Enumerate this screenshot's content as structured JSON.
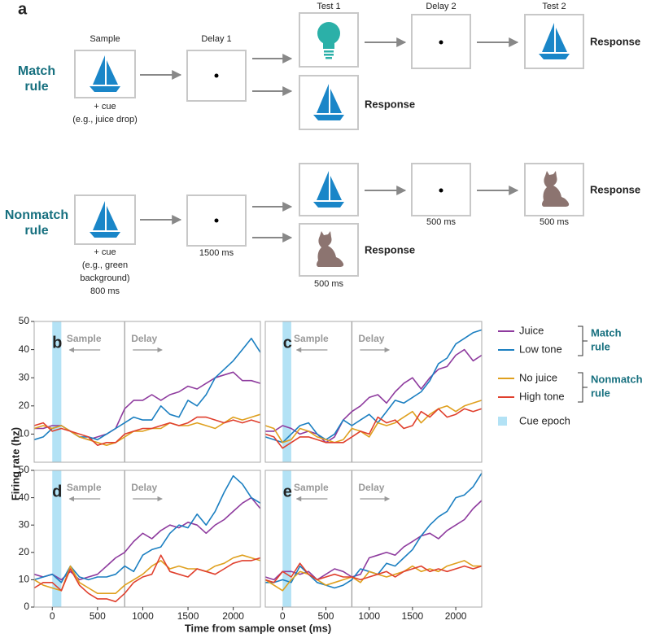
{
  "panel_a": {
    "label": "a",
    "headers": [
      "Sample",
      "Delay 1",
      "Test 1",
      "Delay 2",
      "Test 2"
    ],
    "match": {
      "rule": [
        "Match",
        "rule"
      ],
      "cue": [
        "+ cue",
        "(e.g., juice drop)"
      ],
      "responses": [
        "Response",
        "Response"
      ]
    },
    "nonmatch": {
      "rule": [
        "Nonmatch",
        "rule"
      ],
      "cue": [
        "+ cue",
        "(e.g., green",
        "background)",
        "800 ms"
      ],
      "delay1_duration": "1500 ms",
      "test1_duration": "500 ms",
      "delay2_duration": "500 ms",
      "test2_duration": "500 ms",
      "responses": [
        "Response",
        "Response"
      ]
    }
  },
  "legend": {
    "groups": [
      [
        "Match",
        "rule"
      ],
      [
        "Nonmatch",
        "rule"
      ]
    ],
    "cue_epoch": "Cue epoch",
    "cue_color": "#b3e2f5"
  },
  "chart_data": [
    {
      "type": "line",
      "label": "b",
      "annotations": [
        "Sample",
        "Delay"
      ],
      "vline": 800,
      "shaded_span": [
        0,
        100
      ],
      "x": [
        -200,
        -100,
        0,
        100,
        200,
        300,
        400,
        500,
        600,
        700,
        800,
        900,
        1000,
        1100,
        1200,
        1300,
        1400,
        1500,
        1600,
        1700,
        1800,
        1900,
        2000,
        2100,
        2200,
        2300
      ],
      "xlim": [
        -200,
        2300
      ],
      "ylim": [
        0,
        50
      ],
      "yticks": [
        10,
        20,
        30,
        40,
        50
      ],
      "series": [
        {
          "name": "Juice",
          "color": "#8e3b9e",
          "values": [
            12,
            12,
            13,
            13,
            11,
            9,
            8,
            9,
            10,
            12,
            19,
            22,
            22,
            24,
            22,
            24,
            25,
            27,
            26,
            28,
            30,
            31,
            32,
            29,
            29,
            28
          ]
        },
        {
          "name": "Low tone",
          "color": "#1b7fc1",
          "values": [
            8,
            9,
            12,
            13,
            11,
            9,
            9,
            8,
            10,
            12,
            14,
            16,
            15,
            15,
            20,
            17,
            16,
            22,
            20,
            24,
            30,
            33,
            36,
            40,
            44,
            39
          ]
        },
        {
          "name": "No juice",
          "color": "#dfa01e",
          "values": [
            12,
            13,
            12,
            13,
            11,
            9,
            8,
            7,
            6,
            7,
            9,
            11,
            11,
            12,
            12,
            14,
            13,
            13,
            14,
            13,
            12,
            14,
            16,
            15,
            16,
            17
          ]
        },
        {
          "name": "High tone",
          "color": "#e0402e",
          "values": [
            13,
            14,
            11,
            12,
            11,
            10,
            9,
            6,
            7,
            7,
            10,
            11,
            12,
            12,
            13,
            14,
            13,
            14,
            16,
            16,
            15,
            14,
            15,
            14,
            15,
            14
          ]
        }
      ]
    },
    {
      "type": "line",
      "label": "c",
      "annotations": [
        "Sample",
        "Delay"
      ],
      "vline": 800,
      "shaded_span": [
        0,
        100
      ],
      "x": [
        -200,
        -100,
        0,
        100,
        200,
        300,
        400,
        500,
        600,
        700,
        800,
        900,
        1000,
        1100,
        1200,
        1300,
        1400,
        1500,
        1600,
        1700,
        1800,
        1900,
        2000,
        2100,
        2200,
        2300
      ],
      "xlim": [
        -200,
        2300
      ],
      "ylim": [
        0,
        50
      ],
      "series": [
        {
          "name": "Juice",
          "color": "#8e3b9e",
          "values": [
            11,
            11,
            13,
            12,
            10,
            11,
            10,
            7,
            9,
            15,
            18,
            20,
            23,
            24,
            21,
            25,
            28,
            30,
            26,
            30,
            33,
            34,
            38,
            40,
            36,
            38
          ]
        },
        {
          "name": "Low tone",
          "color": "#1b7fc1",
          "values": [
            9,
            8,
            7,
            10,
            13,
            14,
            10,
            8,
            10,
            15,
            13,
            15,
            17,
            14,
            18,
            22,
            21,
            23,
            25,
            29,
            35,
            37,
            42,
            44,
            46,
            47
          ]
        },
        {
          "name": "No juice",
          "color": "#dfa01e",
          "values": [
            13,
            12,
            7,
            8,
            12,
            11,
            9,
            8,
            7,
            8,
            12,
            11,
            9,
            14,
            13,
            14,
            16,
            18,
            14,
            17,
            19,
            20,
            18,
            20,
            21,
            22
          ]
        },
        {
          "name": "High tone",
          "color": "#e0402e",
          "values": [
            10,
            9,
            5,
            7,
            9,
            9,
            8,
            7,
            7,
            7,
            9,
            11,
            10,
            16,
            14,
            15,
            12,
            13,
            18,
            16,
            19,
            16,
            17,
            19,
            18,
            19
          ]
        }
      ]
    },
    {
      "type": "line",
      "label": "d",
      "annotations": [
        "Sample",
        "Delay"
      ],
      "vline": 800,
      "shaded_span": [
        0,
        100
      ],
      "ylabel": "Firing rate (hz)",
      "xlabel": "Time from sample onset (ms)",
      "x": [
        -200,
        -100,
        0,
        100,
        200,
        300,
        400,
        500,
        600,
        700,
        800,
        900,
        1000,
        1100,
        1200,
        1300,
        1400,
        1500,
        1600,
        1700,
        1800,
        1900,
        2000,
        2100,
        2200,
        2300
      ],
      "xlim": [
        -200,
        2300
      ],
      "ylim": [
        0,
        50
      ],
      "yticks": [
        0,
        10,
        20,
        30,
        40,
        50
      ],
      "xticks": [
        0,
        500,
        1000,
        1500,
        2000
      ],
      "series": [
        {
          "name": "Juice",
          "color": "#8e3b9e",
          "values": [
            12,
            11,
            12,
            10,
            13,
            10,
            11,
            12,
            15,
            18,
            20,
            24,
            27,
            25,
            28,
            30,
            29,
            31,
            30,
            27,
            30,
            32,
            35,
            38,
            40,
            36
          ]
        },
        {
          "name": "Low tone",
          "color": "#1b7fc1",
          "values": [
            10,
            11,
            12,
            9,
            15,
            11,
            10,
            11,
            11,
            12,
            15,
            13,
            19,
            21,
            22,
            27,
            30,
            29,
            34,
            30,
            35,
            42,
            48,
            45,
            40,
            38
          ]
        },
        {
          "name": "No juice",
          "color": "#dfa01e",
          "values": [
            10,
            8,
            7,
            6,
            15,
            9,
            7,
            5,
            5,
            5,
            8,
            10,
            12,
            15,
            17,
            14,
            15,
            14,
            14,
            13,
            15,
            16,
            18,
            19,
            18,
            17
          ]
        },
        {
          "name": "High tone",
          "color": "#e0402e",
          "values": [
            7,
            9,
            9,
            6,
            14,
            8,
            5,
            3,
            3,
            2,
            5,
            9,
            11,
            12,
            19,
            13,
            12,
            11,
            14,
            13,
            12,
            14,
            16,
            17,
            17,
            18
          ]
        }
      ]
    },
    {
      "type": "line",
      "label": "e",
      "annotations": [
        "Sample",
        "Delay"
      ],
      "vline": 800,
      "shaded_span": [
        0,
        100
      ],
      "x": [
        -200,
        -100,
        0,
        100,
        200,
        300,
        400,
        500,
        600,
        700,
        800,
        900,
        1000,
        1100,
        1200,
        1300,
        1400,
        1500,
        1600,
        1700,
        1800,
        1900,
        2000,
        2100,
        2200,
        2300
      ],
      "xlim": [
        -200,
        2300
      ],
      "ylim": [
        0,
        50
      ],
      "xticks": [
        0,
        500,
        1000,
        1500,
        2000
      ],
      "series": [
        {
          "name": "Juice",
          "color": "#8e3b9e",
          "values": [
            11,
            10,
            13,
            13,
            12,
            13,
            10,
            12,
            14,
            13,
            11,
            12,
            18,
            19,
            20,
            19,
            22,
            24,
            26,
            27,
            25,
            28,
            30,
            32,
            36,
            39
          ]
        },
        {
          "name": "Low tone",
          "color": "#1b7fc1",
          "values": [
            9,
            9,
            10,
            9,
            15,
            12,
            9,
            8,
            7,
            8,
            10,
            14,
            13,
            12,
            16,
            15,
            18,
            21,
            26,
            30,
            33,
            35,
            40,
            41,
            44,
            49
          ]
        },
        {
          "name": "No juice",
          "color": "#dfa01e",
          "values": [
            10,
            8,
            6,
            10,
            13,
            12,
            10,
            8,
            9,
            10,
            11,
            9,
            13,
            12,
            11,
            12,
            13,
            15,
            13,
            14,
            13,
            15,
            16,
            17,
            15,
            15
          ]
        },
        {
          "name": "High tone",
          "color": "#e0402e",
          "values": [
            10,
            9,
            13,
            11,
            16,
            12,
            10,
            11,
            12,
            11,
            11,
            10,
            11,
            12,
            13,
            11,
            13,
            14,
            15,
            13,
            14,
            13,
            14,
            15,
            14,
            15
          ]
        }
      ]
    }
  ]
}
